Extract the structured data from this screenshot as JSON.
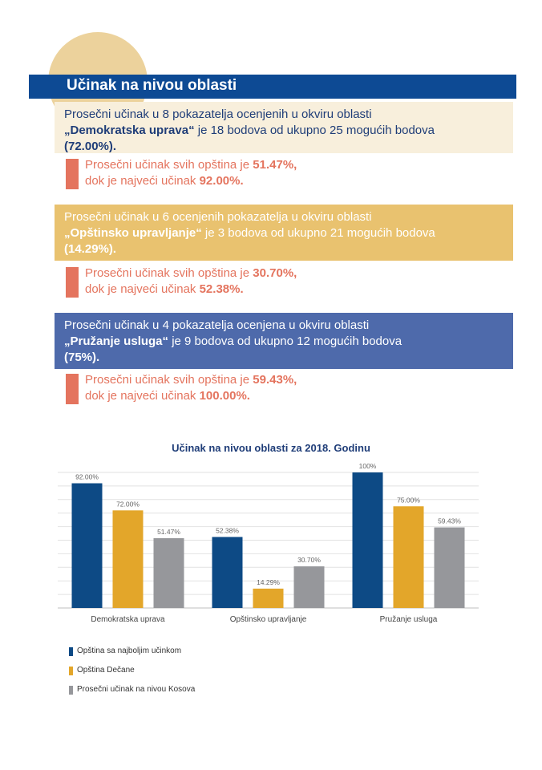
{
  "header": {
    "title": "Učinak na nivou oblasti"
  },
  "areas": [
    {
      "intro": "Prosečni učinak u 8 pokazatelja ocenjenih u okviru oblasti",
      "name": "„Demokratska uprava“",
      "mid": " je 18 bodova od ukupno 25 mogućih bodova",
      "pct": "(72.00%).",
      "avg_label": "Prosečni učinak svih opština je ",
      "avg_value": "51.47%,",
      "max_label": "dok je najveći učinak ",
      "max_value": "92.00%."
    },
    {
      "intro": "Prosečni učinak u 6 ocenjenih pokazatelja u okviru oblasti",
      "name": "„Opštinsko upravljanje“",
      "mid": " je 3 bodova od ukupno 21 mogućih bodova",
      "pct": "(14.29%).",
      "avg_label": "Prosečni učinak svih opština je ",
      "avg_value": "30.70%,",
      "max_label": "dok je najveći učinak ",
      "max_value": "52.38%."
    },
    {
      "intro": "Prosečni učinak u 4 pokazatelja ocenjena u okviru oblasti",
      "name": "„Pružanje usluga“",
      "mid": " je 9 bodova od ukupno 12 mogućih bodova",
      "pct": "(75%).",
      "avg_label": "Prosečni učinak svih opština je ",
      "avg_value": "59.43%,",
      "max_label": "dok je najveći učinak ",
      "max_value": "100.00%."
    }
  ],
  "chart_data": {
    "type": "bar",
    "title": "Učinak na nivou oblasti za 2018. Godinu",
    "categories": [
      "Demokratska uprava",
      "Opštinsko upravljanje",
      "Pružanje usluga"
    ],
    "series": [
      {
        "name": "Opština sa najboljim učinkom",
        "color": "#0d4a85",
        "values": [
          92.0,
          52.38,
          100
        ],
        "labels": [
          "92.00%",
          "52.38%",
          "100%"
        ]
      },
      {
        "name": "Opština Dečane",
        "color": "#e3a62a",
        "values": [
          72.0,
          14.29,
          75.0
        ],
        "labels": [
          "72.00%",
          "14.29%",
          "75.00%"
        ]
      },
      {
        "name": "Prosečni učinak na nivou Kosova",
        "color": "#96979b",
        "values": [
          51.47,
          30.7,
          59.43
        ],
        "labels": [
          "51.47%",
          "30.70%",
          "59.43%"
        ]
      }
    ],
    "ylim": [
      0,
      100
    ],
    "grid": true,
    "legend_position": "bottom-left"
  }
}
